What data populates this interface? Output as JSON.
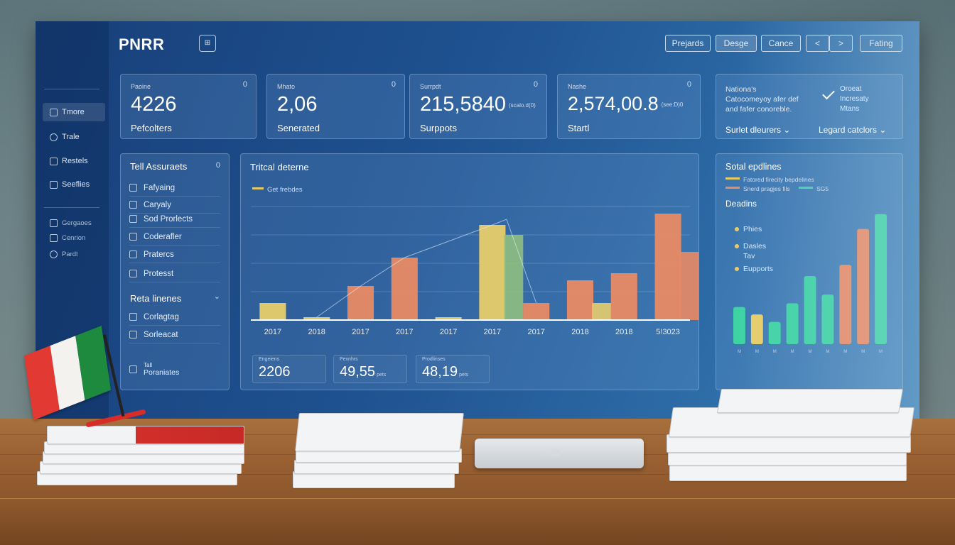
{
  "app": {
    "brand": "PNRR",
    "grid_glyph": "⊞"
  },
  "toolbar": {
    "buttons": [
      {
        "label": "Prejards"
      },
      {
        "label": "Desge"
      },
      {
        "label": "Cance"
      },
      {
        "label": "<"
      },
      {
        "label": ">"
      },
      {
        "label": "Fating"
      }
    ]
  },
  "sidebar": {
    "items": [
      {
        "label": "Tmore",
        "icon": "home-icon"
      },
      {
        "label": "Trale",
        "icon": "search-icon"
      },
      {
        "label": "Restels",
        "icon": "document-icon"
      },
      {
        "label": "Seeflies",
        "icon": "folder-icon"
      }
    ],
    "secondary": [
      {
        "label": "Gergaoes"
      },
      {
        "label": "Cenrion"
      },
      {
        "label": "Pardl"
      }
    ]
  },
  "kpis": [
    {
      "label": "Paoine",
      "value": "4226",
      "unit": "",
      "name": "Pefcolters",
      "corner": "0"
    },
    {
      "label": "Mhato",
      "value": "2,06",
      "unit": "",
      "name": "Senerated",
      "corner": "0"
    },
    {
      "label": "Surrpdt",
      "value": "215,5840",
      "unit": "(scalo.d(0)",
      "name": "Surppots",
      "corner": "0"
    },
    {
      "label": "Nashe",
      "value": "2,574,00.8",
      "unit": "(see:D)0",
      "name": "Startl",
      "corner": "0"
    }
  ],
  "info_card": {
    "left_text": [
      "Nationa's",
      "Catocomeyoy afer def",
      "and fafer conoreble."
    ],
    "right_text": [
      "Oroeat",
      "Incresaty",
      "Mtans"
    ],
    "select_left": "Surlet dleurers",
    "select_right": "Legard catclors"
  },
  "left_panel": {
    "title": "Tell Assuraets",
    "title_count": "0",
    "items": [
      "Fafyaing",
      "Caryaly",
      "Sod Prorlects",
      "Coderafler",
      "Pratercs",
      "Protesst"
    ],
    "section2_title": "Reta linenes",
    "section2_items": [
      "Corlagtag",
      "Sorleacat"
    ],
    "footer_label": "Tall",
    "footer_item": "Poraniates"
  },
  "main_chart_card": {
    "legend": "Get frebdes",
    "summary": [
      {
        "label": "Engeiens",
        "value": "2206",
        "unit": ""
      },
      {
        "label": "Pexnhrs",
        "value": "49,55",
        "unit": "pets"
      },
      {
        "label": "Prodlinses",
        "value": "48,19",
        "unit": "pets"
      }
    ]
  },
  "right_panel": {
    "title": "Sotal epdlines",
    "legend": [
      {
        "label": "Fatored firecity bepdelines",
        "color": "#e7cd6a"
      },
      {
        "label": "Snerd pragjes fils",
        "color": "#e98a64"
      },
      {
        "label": "SG5",
        "color": "#3ed3a4"
      }
    ],
    "subtitle": "Deadins",
    "items": [
      "Phies",
      "Dasles",
      "Tav",
      "Eupports"
    ]
  },
  "colors": {
    "yellow": "#e7cd6a",
    "orange": "#e98a64",
    "green": "#8fbf7f",
    "teal": "#3ed3a4"
  },
  "chart_data": [
    {
      "type": "bar",
      "title": "Tritcal deterne",
      "categories": [
        "2017",
        "2018",
        "2017",
        "2017",
        "2017",
        "2017",
        "2017",
        "2018",
        "2018",
        "5!3023"
      ],
      "series": [
        {
          "name": "Get frebdes",
          "values": [
            12,
            2,
            24,
            44,
            2,
            67,
            12,
            28,
            33,
            75
          ]
        },
        {
          "values": [
            0,
            0,
            0,
            0,
            0,
            60,
            0,
            12,
            0,
            48
          ]
        }
      ],
      "bar_colors": [
        "#e7cd6a",
        "#e7cd6a",
        "#e98a64",
        "#e98a64",
        "#e7cd6a",
        "#e7cd6a",
        "#e98a64",
        "#e98a64",
        "#e98a64",
        "#e98a64"
      ],
      "overlay_colors": [
        "",
        "",
        "",
        "",
        "",
        "#8fbf7f",
        "",
        "#e7cd6a",
        "",
        "#e98a64"
      ],
      "ylim": [
        0,
        80
      ],
      "grid": true
    },
    {
      "type": "bar",
      "title": "Sotal epdlines",
      "categories": [
        "M",
        "M",
        "M",
        "M",
        "M",
        "M",
        "M",
        "M",
        "M"
      ],
      "values": [
        30,
        24,
        18,
        33,
        55,
        40,
        64,
        93,
        105
      ],
      "bar_colors": [
        "#3ed3a4",
        "#e7cd6a",
        "#3ed3a4",
        "#3ed3a4",
        "#3ed3a4",
        "#3ed3a4",
        "#e98a64",
        "#e98a64",
        "#3ed3a4"
      ],
      "ylim": [
        0,
        110
      ]
    }
  ]
}
